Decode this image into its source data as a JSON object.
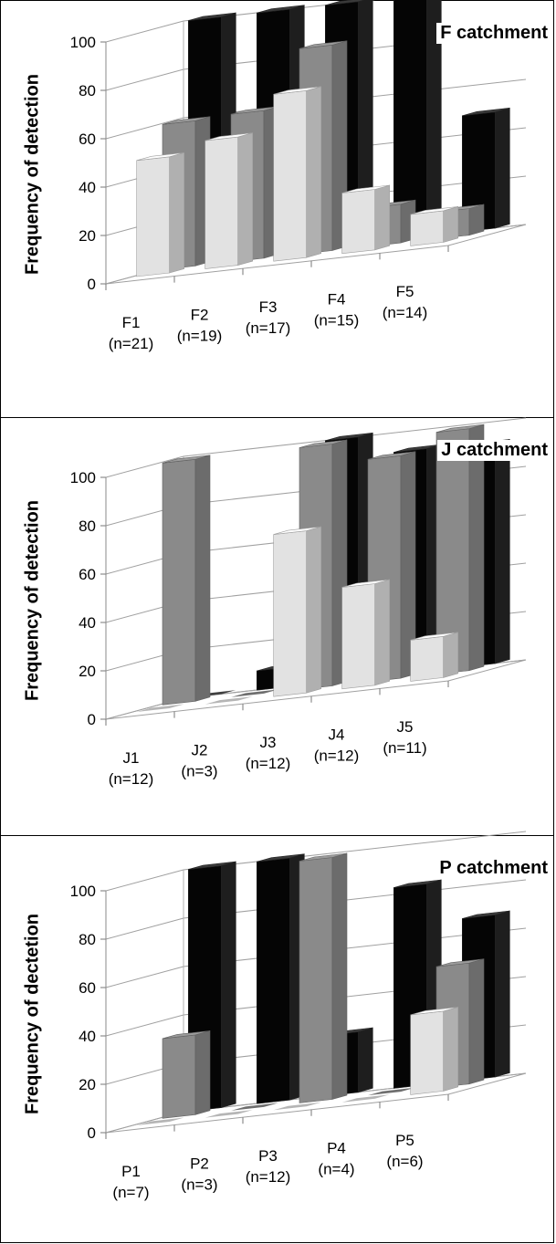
{
  "chart_data": [
    {
      "type": "bar",
      "title": "F catchment",
      "ylabel": "Frequency of detection",
      "ylim": [
        0,
        100
      ],
      "yticks": [
        "0",
        "20",
        "40",
        "60",
        "80",
        "100"
      ],
      "grid": true,
      "categories": [
        "F1",
        "F2",
        "F3",
        "F4",
        "F5"
      ],
      "category_counts": [
        "(n=21)",
        "(n=19)",
        "(n=17)",
        "(n=15)",
        "(n=14)"
      ],
      "series": [
        {
          "color": "#e2e2e2",
          "values": [
            48,
            53,
            69,
            25,
            13
          ]
        },
        {
          "color": "#8a8a8a",
          "values": [
            60,
            61,
            85,
            16,
            11
          ]
        },
        {
          "color": "#050505",
          "values": [
            100,
            100,
            100,
            100,
            48
          ]
        }
      ]
    },
    {
      "type": "bar",
      "title": "J catchment",
      "ylabel": "Frequency of detection",
      "ylim": [
        0,
        100
      ],
      "yticks": [
        "0",
        "20",
        "40",
        "60",
        "80",
        "100"
      ],
      "grid": true,
      "categories": [
        "J1",
        "J2",
        "J3",
        "J4",
        "J5"
      ],
      "category_counts": [
        "(n=12)",
        "(n=3)",
        "(n=12)",
        "(n=12)",
        "(n=11)"
      ],
      "series": [
        {
          "color": "#e2e2e2",
          "values": [
            0,
            0,
            67,
            42,
            17
          ]
        },
        {
          "color": "#8a8a8a",
          "values": [
            100,
            0,
            100,
            92,
            100
          ]
        },
        {
          "color": "#050505",
          "values": [
            0,
            8,
            100,
            92,
            91
          ]
        }
      ]
    },
    {
      "type": "bar",
      "title": "P catchment",
      "ylabel": "Frequency of dectetion",
      "ylim": [
        0,
        100
      ],
      "yticks": [
        "0",
        "20",
        "40",
        "60",
        "80",
        "100"
      ],
      "grid": true,
      "categories": [
        "P1",
        "P2",
        "P3",
        "P4",
        "P5"
      ],
      "category_counts": [
        "(n=7)",
        "(n=3)",
        "(n=12)",
        "(n=4)",
        "(n=6)"
      ],
      "series": [
        {
          "color": "#e2e2e2",
          "values": [
            0,
            0,
            0,
            0,
            33
          ]
        },
        {
          "color": "#8a8a8a",
          "values": [
            33,
            0,
            100,
            0,
            50
          ]
        },
        {
          "color": "#050505",
          "values": [
            100,
            100,
            25,
            83,
            67
          ]
        }
      ]
    }
  ]
}
